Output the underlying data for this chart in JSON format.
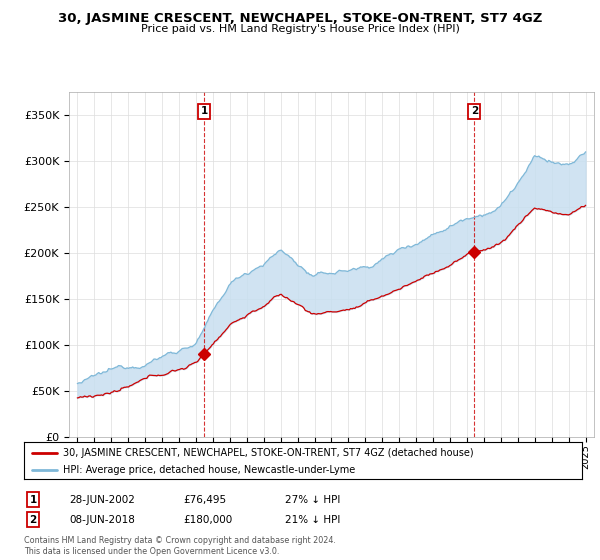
{
  "title": "30, JASMINE CRESCENT, NEWCHAPEL, STOKE-ON-TRENT, ST7 4GZ",
  "subtitle": "Price paid vs. HM Land Registry's House Price Index (HPI)",
  "legend_line1": "30, JASMINE CRESCENT, NEWCHAPEL, STOKE-ON-TRENT, ST7 4GZ (detached house)",
  "legend_line2": "HPI: Average price, detached house, Newcastle-under-Lyme",
  "transaction1_date": "28-JUN-2002",
  "transaction1_price": "£76,495",
  "transaction1_hpi": "27% ↓ HPI",
  "transaction2_date": "08-JUN-2018",
  "transaction2_price": "£180,000",
  "transaction2_hpi": "21% ↓ HPI",
  "copyright": "Contains HM Land Registry data © Crown copyright and database right 2024.\nThis data is licensed under the Open Government Licence v3.0.",
  "hpi_color": "#7fb8d8",
  "price_color": "#cc0000",
  "fill_color": "#c8dff0",
  "ylim_min": 0,
  "ylim_max": 375000,
  "ytick_values": [
    0,
    50000,
    100000,
    150000,
    200000,
    250000,
    300000,
    350000
  ],
  "ytick_labels": [
    "£0",
    "£50K",
    "£100K",
    "£150K",
    "£200K",
    "£250K",
    "£300K",
    "£350K"
  ],
  "year_start": 1995,
  "year_end": 2025,
  "transaction1_year": 2002.48,
  "transaction1_price_val": 76495,
  "transaction2_year": 2018.43,
  "transaction2_price_val": 180000
}
